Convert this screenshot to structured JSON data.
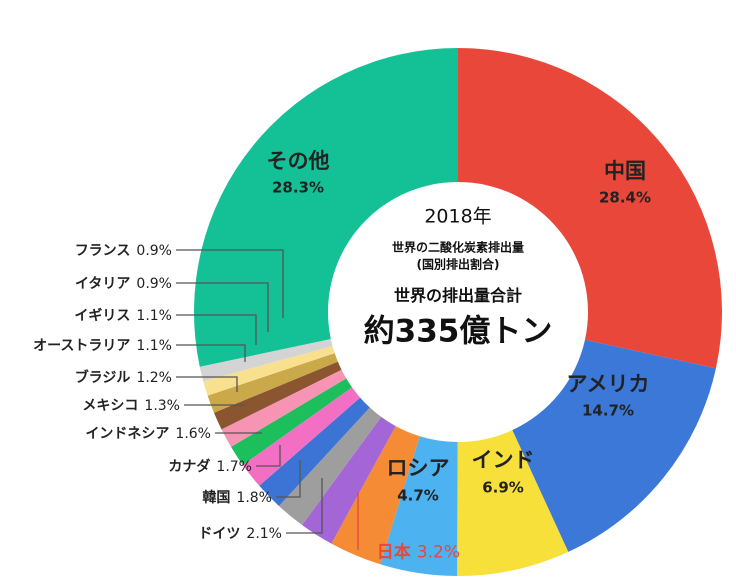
{
  "chart_data": {
    "type": "pie",
    "variant": "donut",
    "title": "2018年",
    "subtitle": "世界の二酸化炭素排出量",
    "subtitle2": "(国別排出割合)",
    "total_label": "世界の排出量合計",
    "total_value": "約335億トン",
    "start": "top, clockwise",
    "slices": [
      {
        "name": "中国",
        "value": 28.4,
        "label": "28.4%",
        "color": "#e8473a"
      },
      {
        "name": "アメリカ",
        "value": 14.7,
        "label": "14.7%",
        "color": "#3b78d8"
      },
      {
        "name": "インド",
        "value": 6.9,
        "label": "6.9%",
        "color": "#f7e03a"
      },
      {
        "name": "ロシア",
        "value": 4.7,
        "label": "4.7%",
        "color": "#4db3f0"
      },
      {
        "name": "日本",
        "value": 3.2,
        "label": "3.2%",
        "color": "#f58b34"
      },
      {
        "name": "ドイツ",
        "value": 2.1,
        "label": "2.1%",
        "color": "#a466d6"
      },
      {
        "name": "韓国",
        "value": 1.8,
        "label": "1.8%",
        "color": "#9e9e9e"
      },
      {
        "name": "カナダ",
        "value": 1.7,
        "label": "1.7%",
        "color": "#3c74d6"
      },
      {
        "name": "インドネシア",
        "value": 1.6,
        "label": "1.6%",
        "color": "#f36fc4"
      },
      {
        "name": "メキシコ",
        "value": 1.3,
        "label": "1.3%",
        "color": "#1cbf5c"
      },
      {
        "name": "ブラジル",
        "value": 1.2,
        "label": "1.2%",
        "color": "#f794b3"
      },
      {
        "name": "オーストラリア",
        "value": 1.1,
        "label": "1.1%",
        "color": "#8b5530"
      },
      {
        "name": "イギリス",
        "value": 1.1,
        "label": "1.1%",
        "color": "#c9a94a"
      },
      {
        "name": "イタリア",
        "value": 0.9,
        "label": "0.9%",
        "color": "#f9e08f"
      },
      {
        "name": "フランス",
        "value": 0.9,
        "label": "0.9%",
        "color": "#d4d4d4"
      },
      {
        "name": "その他",
        "value": 28.3,
        "label": "28.3%",
        "color": "#14c196"
      }
    ],
    "highlight_color": "#e8473a"
  }
}
